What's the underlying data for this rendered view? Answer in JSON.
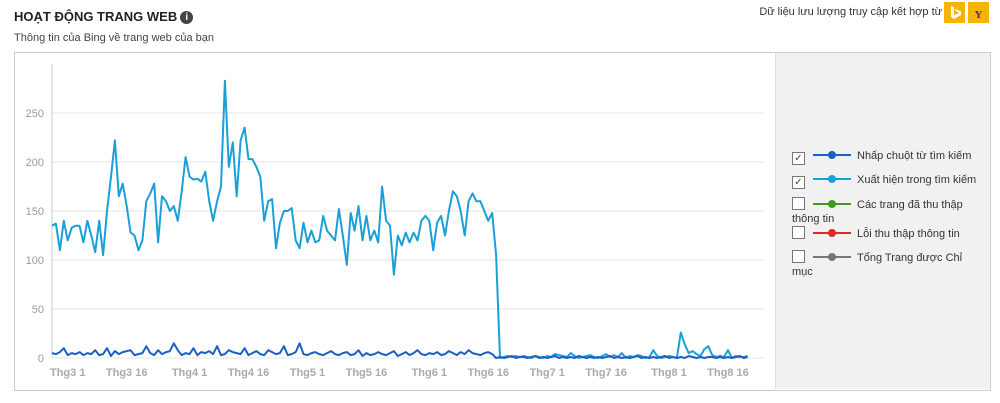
{
  "header": {
    "title": "HOẠT ĐỘNG TRANG WEB",
    "subtitle": "Thông tin của Bing về trang web của bạn",
    "source_note": "Dữ liệu lưu lượng truy cập kết hợp từ"
  },
  "chart_data": {
    "type": "line",
    "categories": [
      null,
      null,
      null,
      null,
      "Thg3 1",
      null,
      null,
      null,
      null,
      null,
      null,
      null,
      null,
      null,
      null,
      null,
      null,
      null,
      null,
      "Thg3 16",
      null,
      null,
      null,
      null,
      null,
      null,
      null,
      null,
      null,
      null,
      null,
      null,
      null,
      null,
      null,
      "Thg4 1",
      null,
      null,
      null,
      null,
      null,
      null,
      null,
      null,
      null,
      null,
      null,
      null,
      null,
      null,
      "Thg4 16",
      null,
      null,
      null,
      null,
      null,
      null,
      null,
      null,
      null,
      null,
      null,
      null,
      null,
      null,
      "Thg5 1",
      null,
      null,
      null,
      null,
      null,
      null,
      null,
      null,
      null,
      null,
      null,
      null,
      null,
      null,
      "Thg5 16",
      null,
      null,
      null,
      null,
      null,
      null,
      null,
      null,
      null,
      null,
      null,
      null,
      null,
      null,
      null,
      "Thg6 1",
      null,
      null,
      null,
      null,
      null,
      null,
      null,
      null,
      null,
      null,
      null,
      null,
      null,
      null,
      "Thg6 16",
      null,
      null,
      null,
      null,
      null,
      null,
      null,
      null,
      null,
      null,
      null,
      null,
      null,
      null,
      "Thg7 1",
      null,
      null,
      null,
      null,
      null,
      null,
      null,
      null,
      null,
      null,
      null,
      null,
      null,
      null,
      "Thg7 16",
      null,
      null,
      null,
      null,
      null,
      null,
      null,
      null,
      null,
      null,
      null,
      null,
      null,
      null,
      null,
      "Thg8 1",
      null,
      null,
      null,
      null,
      null,
      null,
      null,
      null,
      null,
      null,
      null,
      null,
      null,
      null,
      "Thg8 16",
      null,
      null,
      null,
      null,
      null
    ],
    "series": [
      {
        "name": "Nhấp chuột từ tìm kiếm",
        "color": "#1c5fc4",
        "checked": true,
        "values": [
          5,
          4,
          6,
          10,
          3,
          5,
          4,
          6,
          3,
          5,
          4,
          8,
          3,
          4,
          10,
          2,
          7,
          4,
          6,
          7,
          8,
          3,
          4,
          5,
          12,
          5,
          3,
          8,
          4,
          6,
          7,
          15,
          8,
          3,
          5,
          4,
          10,
          3,
          6,
          5,
          7,
          4,
          12,
          3,
          4,
          8,
          6,
          5,
          4,
          10,
          3,
          5,
          7,
          4,
          3,
          8,
          6,
          4,
          5,
          12,
          3,
          4,
          6,
          15,
          4,
          3,
          5,
          6,
          4,
          3,
          5,
          7,
          4,
          3,
          5,
          6,
          3,
          4,
          8,
          2,
          5,
          3,
          4,
          6,
          4,
          3,
          5,
          7,
          2,
          4,
          6,
          3,
          5,
          8,
          4,
          3,
          5,
          4,
          6,
          3,
          4,
          7,
          5,
          3,
          6,
          4,
          8,
          5,
          4,
          3,
          5,
          6,
          4,
          0,
          1,
          0,
          1,
          2,
          0,
          1,
          1,
          0,
          1,
          2,
          0,
          1,
          0,
          1,
          2,
          0,
          1,
          0,
          1,
          0,
          2,
          1,
          0,
          1,
          0,
          1,
          0,
          1,
          2,
          0,
          1,
          0,
          1,
          0,
          1,
          2,
          0,
          1,
          0,
          1,
          0,
          1,
          2,
          0,
          1,
          0,
          1,
          0,
          2,
          1,
          0,
          1,
          0,
          1,
          1,
          0,
          1,
          0,
          1,
          0,
          1,
          2,
          0,
          1
        ]
      },
      {
        "name": "Xuất hiện trong tìm kiếm",
        "color": "#1a9fd9",
        "checked": true,
        "values": [
          135,
          137,
          110,
          140,
          120,
          133,
          135,
          135,
          118,
          140,
          125,
          108,
          140,
          105,
          150,
          185,
          222,
          165,
          178,
          155,
          128,
          125,
          110,
          120,
          160,
          168,
          178,
          118,
          165,
          160,
          150,
          155,
          140,
          170,
          205,
          185,
          182,
          183,
          180,
          190,
          160,
          140,
          160,
          175,
          283,
          195,
          220,
          165,
          222,
          235,
          203,
          203,
          195,
          185,
          140,
          160,
          162,
          112,
          138,
          150,
          150,
          153,
          120,
          112,
          138,
          118,
          130,
          118,
          120,
          145,
          130,
          125,
          120,
          152,
          125,
          95,
          148,
          130,
          155,
          120,
          145,
          120,
          130,
          118,
          175,
          140,
          135,
          85,
          125,
          115,
          128,
          118,
          128,
          120,
          140,
          145,
          140,
          110,
          138,
          145,
          125,
          150,
          170,
          165,
          150,
          125,
          160,
          168,
          160,
          160,
          150,
          140,
          148,
          105,
          0,
          1,
          2,
          1,
          2,
          1,
          2,
          1,
          0,
          2,
          1,
          0,
          2,
          1,
          4,
          3,
          2,
          1,
          5,
          2,
          0,
          1,
          2,
          3,
          1,
          0,
          2,
          4,
          1,
          3,
          1,
          5,
          0,
          2,
          1,
          3,
          2,
          0,
          1,
          8,
          2,
          0,
          1,
          2,
          1,
          0,
          26,
          14,
          5,
          7,
          4,
          2,
          9,
          12,
          3,
          1,
          2,
          1,
          8,
          0,
          2,
          1,
          1,
          2
        ]
      },
      {
        "name": "Các trang đã thu thập thông tin",
        "color": "#3d9b1c",
        "checked": false
      },
      {
        "name": "Lỗi thu thập thông tin",
        "color": "#e5232b",
        "checked": false
      },
      {
        "name": "Tổng Trang được Chỉ mục",
        "color": "#777777",
        "checked": false
      }
    ],
    "ylim": [
      0,
      300
    ],
    "yticks": [
      0,
      50,
      100,
      150,
      200,
      250
    ],
    "grid": true
  }
}
